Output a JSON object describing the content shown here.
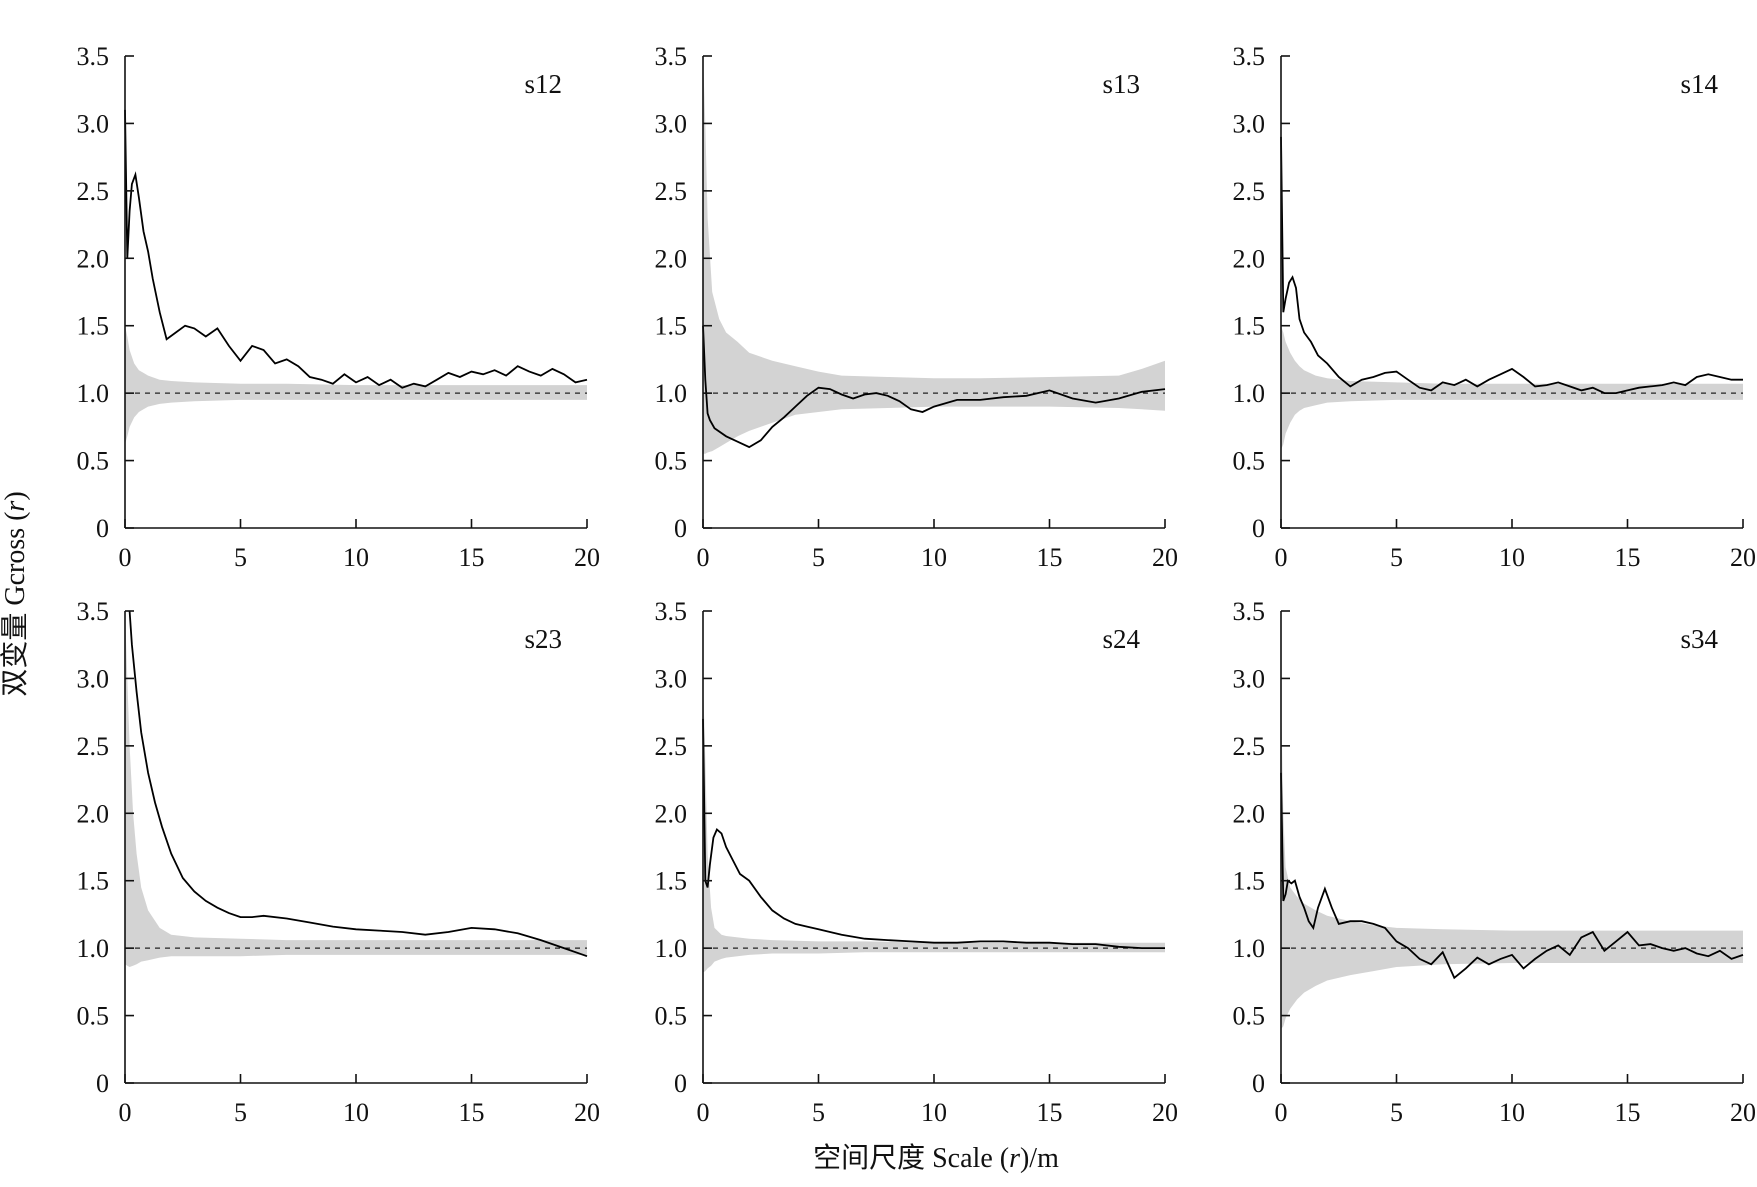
{
  "figure": {
    "ylabel_prefix": "双变量 Gcross (",
    "ylabel_var": "r",
    "ylabel_suffix": ")",
    "xlabel_prefix": "空间尺度 Scale (",
    "xlabel_var": "r",
    "xlabel_suffix": ")/m"
  },
  "chart_data": [
    {
      "type": "line",
      "title": "s12",
      "xlim": [
        0,
        20
      ],
      "ylim": [
        0,
        3.5
      ],
      "xticks": [
        0,
        5,
        10,
        15,
        20
      ],
      "xtick_labels": [
        "0",
        "5",
        "10",
        "15",
        "20"
      ],
      "yticks": [
        0,
        0.5,
        1.0,
        1.5,
        2.0,
        2.5,
        3.0,
        3.5
      ],
      "ytick_labels": [
        "0",
        "0.5",
        "1.0",
        "1.5",
        "2.0",
        "2.5",
        "3.0",
        "3.5"
      ],
      "reference": 1.0,
      "observed": {
        "x": [
          0,
          0.1,
          0.2,
          0.3,
          0.45,
          0.6,
          0.8,
          1.0,
          1.2,
          1.5,
          1.8,
          2.2,
          2.6,
          3.0,
          3.5,
          4.0,
          4.5,
          5.0,
          5.5,
          6.0,
          6.5,
          7.0,
          7.5,
          8.0,
          8.5,
          9.0,
          9.5,
          10.0,
          10.5,
          11.0,
          11.5,
          12.0,
          12.5,
          13.0,
          13.5,
          14.0,
          14.5,
          15.0,
          15.5,
          16.0,
          16.5,
          17.0,
          17.5,
          18.0,
          18.5,
          19.0,
          19.5,
          20.0
        ],
        "y": [
          3.1,
          2.0,
          2.35,
          2.55,
          2.62,
          2.45,
          2.2,
          2.05,
          1.85,
          1.6,
          1.4,
          1.45,
          1.5,
          1.48,
          1.42,
          1.48,
          1.35,
          1.24,
          1.35,
          1.32,
          1.22,
          1.25,
          1.2,
          1.12,
          1.1,
          1.07,
          1.14,
          1.08,
          1.12,
          1.06,
          1.1,
          1.04,
          1.07,
          1.05,
          1.1,
          1.15,
          1.12,
          1.16,
          1.14,
          1.17,
          1.13,
          1.2,
          1.16,
          1.13,
          1.18,
          1.14,
          1.08,
          1.1
        ]
      },
      "envelope": {
        "x": [
          0,
          0.1,
          0.2,
          0.4,
          0.6,
          0.8,
          1.0,
          1.5,
          2.0,
          3.0,
          5.0,
          7.0,
          10.0,
          13.0,
          16.0,
          20.0
        ],
        "lower": [
          0.62,
          0.68,
          0.75,
          0.82,
          0.86,
          0.88,
          0.9,
          0.92,
          0.93,
          0.94,
          0.95,
          0.95,
          0.95,
          0.95,
          0.95,
          0.95
        ],
        "upper": [
          1.5,
          1.42,
          1.32,
          1.22,
          1.17,
          1.15,
          1.13,
          1.1,
          1.09,
          1.08,
          1.07,
          1.07,
          1.06,
          1.06,
          1.06,
          1.06
        ]
      }
    },
    {
      "type": "line",
      "title": "s13",
      "xlim": [
        0,
        20
      ],
      "ylim": [
        0,
        3.5
      ],
      "xticks": [
        0,
        5,
        10,
        15,
        20
      ],
      "xtick_labels": [
        "0",
        "5",
        "10",
        "15",
        "20"
      ],
      "yticks": [
        0,
        0.5,
        1.0,
        1.5,
        2.0,
        2.5,
        3.0,
        3.5
      ],
      "ytick_labels": [
        "0",
        "0.5",
        "1.0",
        "1.5",
        "2.0",
        "2.5",
        "3.0",
        "3.5"
      ],
      "reference": 1.0,
      "observed": {
        "x": [
          0,
          0.1,
          0.2,
          0.3,
          0.5,
          1.0,
          1.5,
          2.0,
          2.5,
          3.0,
          3.5,
          4.0,
          4.5,
          5.0,
          5.5,
          6.0,
          6.5,
          7.0,
          7.5,
          8.0,
          8.5,
          9.0,
          9.5,
          10.0,
          11.0,
          12.0,
          13.0,
          14.0,
          15.0,
          16.0,
          17.0,
          18.0,
          19.0,
          20.0
        ],
        "y": [
          1.5,
          1.1,
          0.85,
          0.8,
          0.74,
          0.68,
          0.64,
          0.6,
          0.65,
          0.75,
          0.82,
          0.9,
          0.98,
          1.04,
          1.03,
          0.99,
          0.96,
          0.99,
          1.0,
          0.98,
          0.94,
          0.88,
          0.86,
          0.9,
          0.95,
          0.95,
          0.97,
          0.98,
          1.02,
          0.96,
          0.93,
          0.96,
          1.01,
          1.03
        ]
      },
      "envelope": {
        "x": [
          0,
          0.1,
          0.2,
          0.4,
          0.7,
          1.0,
          1.5,
          2.0,
          3.0,
          4.0,
          5.0,
          6.0,
          8.0,
          10.0,
          12.0,
          15.0,
          18.0,
          19.0,
          20.0
        ],
        "lower": [
          0.55,
          0.55,
          0.56,
          0.57,
          0.6,
          0.63,
          0.68,
          0.72,
          0.78,
          0.84,
          0.86,
          0.88,
          0.89,
          0.9,
          0.9,
          0.9,
          0.89,
          0.88,
          0.87
        ],
        "upper": [
          3.5,
          3.0,
          2.3,
          1.75,
          1.55,
          1.45,
          1.38,
          1.3,
          1.24,
          1.2,
          1.16,
          1.13,
          1.12,
          1.11,
          1.11,
          1.12,
          1.13,
          1.18,
          1.24
        ]
      }
    },
    {
      "type": "line",
      "title": "s14",
      "xlim": [
        0,
        20
      ],
      "ylim": [
        0,
        3.5
      ],
      "xticks": [
        0,
        5,
        10,
        15,
        20
      ],
      "xtick_labels": [
        "0",
        "5",
        "10",
        "15",
        "20"
      ],
      "yticks": [
        0,
        0.5,
        1.0,
        1.5,
        2.0,
        2.5,
        3.0,
        3.5
      ],
      "ytick_labels": [
        "0",
        "0.5",
        "1.0",
        "1.5",
        "2.0",
        "2.5",
        "3.0",
        "3.5"
      ],
      "reference": 1.0,
      "observed": {
        "x": [
          0,
          0.1,
          0.2,
          0.35,
          0.5,
          0.65,
          0.8,
          1.0,
          1.3,
          1.6,
          2.0,
          2.5,
          3.0,
          3.5,
          4.0,
          4.5,
          5.0,
          5.5,
          6.0,
          6.5,
          7.0,
          7.5,
          8.0,
          8.5,
          9.0,
          9.5,
          10.0,
          10.5,
          11.0,
          11.5,
          12.0,
          12.5,
          13.0,
          13.5,
          14.0,
          14.5,
          15.0,
          15.5,
          16.0,
          16.5,
          17.0,
          17.5,
          18.0,
          18.5,
          19.0,
          19.5,
          20.0
        ],
        "y": [
          2.9,
          1.6,
          1.7,
          1.82,
          1.86,
          1.78,
          1.55,
          1.45,
          1.38,
          1.28,
          1.22,
          1.12,
          1.05,
          1.1,
          1.12,
          1.15,
          1.16,
          1.1,
          1.04,
          1.02,
          1.08,
          1.06,
          1.1,
          1.05,
          1.1,
          1.14,
          1.18,
          1.12,
          1.05,
          1.06,
          1.08,
          1.05,
          1.02,
          1.04,
          1.0,
          1.0,
          1.02,
          1.04,
          1.05,
          1.06,
          1.08,
          1.06,
          1.12,
          1.14,
          1.12,
          1.1,
          1.1
        ]
      },
      "envelope": {
        "x": [
          0,
          0.1,
          0.2,
          0.4,
          0.6,
          0.8,
          1.0,
          1.5,
          2.0,
          3.0,
          5.0,
          7.0,
          10.0,
          13.0,
          16.0,
          20.0
        ],
        "lower": [
          0.58,
          0.62,
          0.7,
          0.78,
          0.84,
          0.87,
          0.89,
          0.91,
          0.93,
          0.94,
          0.95,
          0.95,
          0.95,
          0.95,
          0.95,
          0.95
        ],
        "upper": [
          1.5,
          1.45,
          1.38,
          1.3,
          1.24,
          1.2,
          1.17,
          1.13,
          1.11,
          1.09,
          1.08,
          1.07,
          1.07,
          1.07,
          1.07,
          1.07
        ]
      }
    },
    {
      "type": "line",
      "title": "s23",
      "xlim": [
        0,
        20
      ],
      "ylim": [
        0,
        3.5
      ],
      "xticks": [
        0,
        5,
        10,
        15,
        20
      ],
      "xtick_labels": [
        "0",
        "5",
        "10",
        "15",
        "20"
      ],
      "yticks": [
        0,
        0.5,
        1.0,
        1.5,
        2.0,
        2.5,
        3.0,
        3.5
      ],
      "ytick_labels": [
        "0",
        "0.5",
        "1.0",
        "1.5",
        "2.0",
        "2.5",
        "3.0",
        "3.5"
      ],
      "reference": 1.0,
      "observed": {
        "x": [
          0.2,
          0.3,
          0.5,
          0.7,
          1.0,
          1.3,
          1.6,
          2.0,
          2.5,
          3.0,
          3.5,
          4.0,
          4.5,
          5.0,
          5.5,
          6.0,
          7.0,
          8.0,
          9.0,
          10.0,
          11.0,
          12.0,
          13.0,
          14.0,
          15.0,
          16.0,
          17.0,
          18.0,
          19.0,
          20.0
        ],
        "y": [
          3.5,
          3.25,
          2.9,
          2.6,
          2.3,
          2.08,
          1.9,
          1.7,
          1.52,
          1.42,
          1.35,
          1.3,
          1.26,
          1.23,
          1.23,
          1.24,
          1.22,
          1.19,
          1.16,
          1.14,
          1.13,
          1.12,
          1.1,
          1.12,
          1.15,
          1.14,
          1.11,
          1.06,
          1.0,
          0.94
        ]
      },
      "envelope": {
        "x": [
          0,
          0.1,
          0.2,
          0.35,
          0.5,
          0.7,
          1.0,
          1.5,
          2.0,
          3.0,
          5.0,
          7.0,
          10.0,
          13.0,
          16.0,
          20.0
        ],
        "lower": [
          0.88,
          0.87,
          0.86,
          0.87,
          0.88,
          0.9,
          0.91,
          0.93,
          0.94,
          0.94,
          0.94,
          0.95,
          0.95,
          0.95,
          0.95,
          0.95
        ],
        "upper": [
          3.5,
          3.0,
          2.5,
          2.0,
          1.7,
          1.45,
          1.28,
          1.15,
          1.1,
          1.08,
          1.07,
          1.06,
          1.06,
          1.06,
          1.06,
          1.06
        ]
      }
    },
    {
      "type": "line",
      "title": "s24",
      "xlim": [
        0,
        20
      ],
      "ylim": [
        0,
        3.5
      ],
      "xticks": [
        0,
        5,
        10,
        15,
        20
      ],
      "xtick_labels": [
        "0",
        "5",
        "10",
        "15",
        "20"
      ],
      "yticks": [
        0,
        0.5,
        1.0,
        1.5,
        2.0,
        2.5,
        3.0,
        3.5
      ],
      "ytick_labels": [
        "0",
        "0.5",
        "1.0",
        "1.5",
        "2.0",
        "2.5",
        "3.0",
        "3.5"
      ],
      "reference": 1.0,
      "observed": {
        "x": [
          0,
          0.1,
          0.2,
          0.3,
          0.45,
          0.6,
          0.8,
          1.0,
          1.3,
          1.6,
          2.0,
          2.5,
          3.0,
          3.5,
          4.0,
          4.5,
          5.0,
          5.5,
          6.0,
          7.0,
          8.0,
          9.0,
          10.0,
          11.0,
          12.0,
          13.0,
          14.0,
          15.0,
          16.0,
          17.0,
          18.0,
          19.0,
          20.0
        ],
        "y": [
          2.7,
          1.5,
          1.45,
          1.62,
          1.82,
          1.88,
          1.85,
          1.75,
          1.65,
          1.55,
          1.5,
          1.38,
          1.28,
          1.22,
          1.18,
          1.16,
          1.14,
          1.12,
          1.1,
          1.07,
          1.06,
          1.05,
          1.04,
          1.04,
          1.05,
          1.05,
          1.04,
          1.04,
          1.03,
          1.03,
          1.01,
          1.0,
          1.0
        ]
      },
      "envelope": {
        "x": [
          0,
          0.1,
          0.2,
          0.35,
          0.5,
          0.8,
          1.0,
          1.5,
          2.0,
          3.0,
          5.0,
          7.0,
          10.0,
          13.0,
          16.0,
          20.0
        ],
        "lower": [
          0.82,
          0.83,
          0.85,
          0.87,
          0.9,
          0.92,
          0.93,
          0.94,
          0.95,
          0.96,
          0.96,
          0.97,
          0.97,
          0.97,
          0.97,
          0.97
        ],
        "upper": [
          3.0,
          2.4,
          1.7,
          1.3,
          1.15,
          1.1,
          1.09,
          1.08,
          1.07,
          1.06,
          1.05,
          1.05,
          1.04,
          1.04,
          1.04,
          1.04
        ]
      }
    },
    {
      "type": "line",
      "title": "s34",
      "xlim": [
        0,
        20
      ],
      "ylim": [
        0,
        3.5
      ],
      "xticks": [
        0,
        5,
        10,
        15,
        20
      ],
      "xtick_labels": [
        "0",
        "5",
        "10",
        "15",
        "20"
      ],
      "yticks": [
        0,
        0.5,
        1.0,
        1.5,
        2.0,
        2.5,
        3.0,
        3.5
      ],
      "ytick_labels": [
        "0",
        "0.5",
        "1.0",
        "1.5",
        "2.0",
        "2.5",
        "3.0",
        "3.5"
      ],
      "reference": 1.0,
      "observed": {
        "x": [
          0,
          0.1,
          0.2,
          0.3,
          0.45,
          0.6,
          0.8,
          1.0,
          1.2,
          1.4,
          1.6,
          1.9,
          2.2,
          2.5,
          3.0,
          3.5,
          4.0,
          4.5,
          5.0,
          5.5,
          6.0,
          6.5,
          7.0,
          7.5,
          8.0,
          8.5,
          9.0,
          9.5,
          10.0,
          10.5,
          11.0,
          11.5,
          12.0,
          12.5,
          13.0,
          13.5,
          14.0,
          14.5,
          15.0,
          15.5,
          16.0,
          16.5,
          17.0,
          17.5,
          18.0,
          18.5,
          19.0,
          19.5,
          20.0
        ],
        "y": [
          2.3,
          1.35,
          1.4,
          1.5,
          1.48,
          1.5,
          1.38,
          1.3,
          1.2,
          1.15,
          1.3,
          1.44,
          1.3,
          1.18,
          1.2,
          1.2,
          1.18,
          1.15,
          1.05,
          1.0,
          0.92,
          0.88,
          0.97,
          0.78,
          0.85,
          0.93,
          0.88,
          0.92,
          0.95,
          0.85,
          0.92,
          0.98,
          1.02,
          0.95,
          1.08,
          1.12,
          0.98,
          1.05,
          1.12,
          1.02,
          1.03,
          1.0,
          0.98,
          1.0,
          0.96,
          0.94,
          0.98,
          0.92,
          0.95
        ]
      },
      "envelope": {
        "x": [
          0,
          0.1,
          0.2,
          0.4,
          0.7,
          1.0,
          1.5,
          2.0,
          3.0,
          4.0,
          5.0,
          7.0,
          10.0,
          13.0,
          16.0,
          20.0
        ],
        "lower": [
          0.4,
          0.42,
          0.48,
          0.55,
          0.62,
          0.67,
          0.72,
          0.76,
          0.8,
          0.83,
          0.86,
          0.88,
          0.89,
          0.89,
          0.89,
          0.89
        ],
        "upper": [
          2.9,
          2.0,
          1.6,
          1.45,
          1.38,
          1.33,
          1.28,
          1.24,
          1.2,
          1.17,
          1.15,
          1.14,
          1.13,
          1.13,
          1.13,
          1.13
        ]
      }
    }
  ]
}
